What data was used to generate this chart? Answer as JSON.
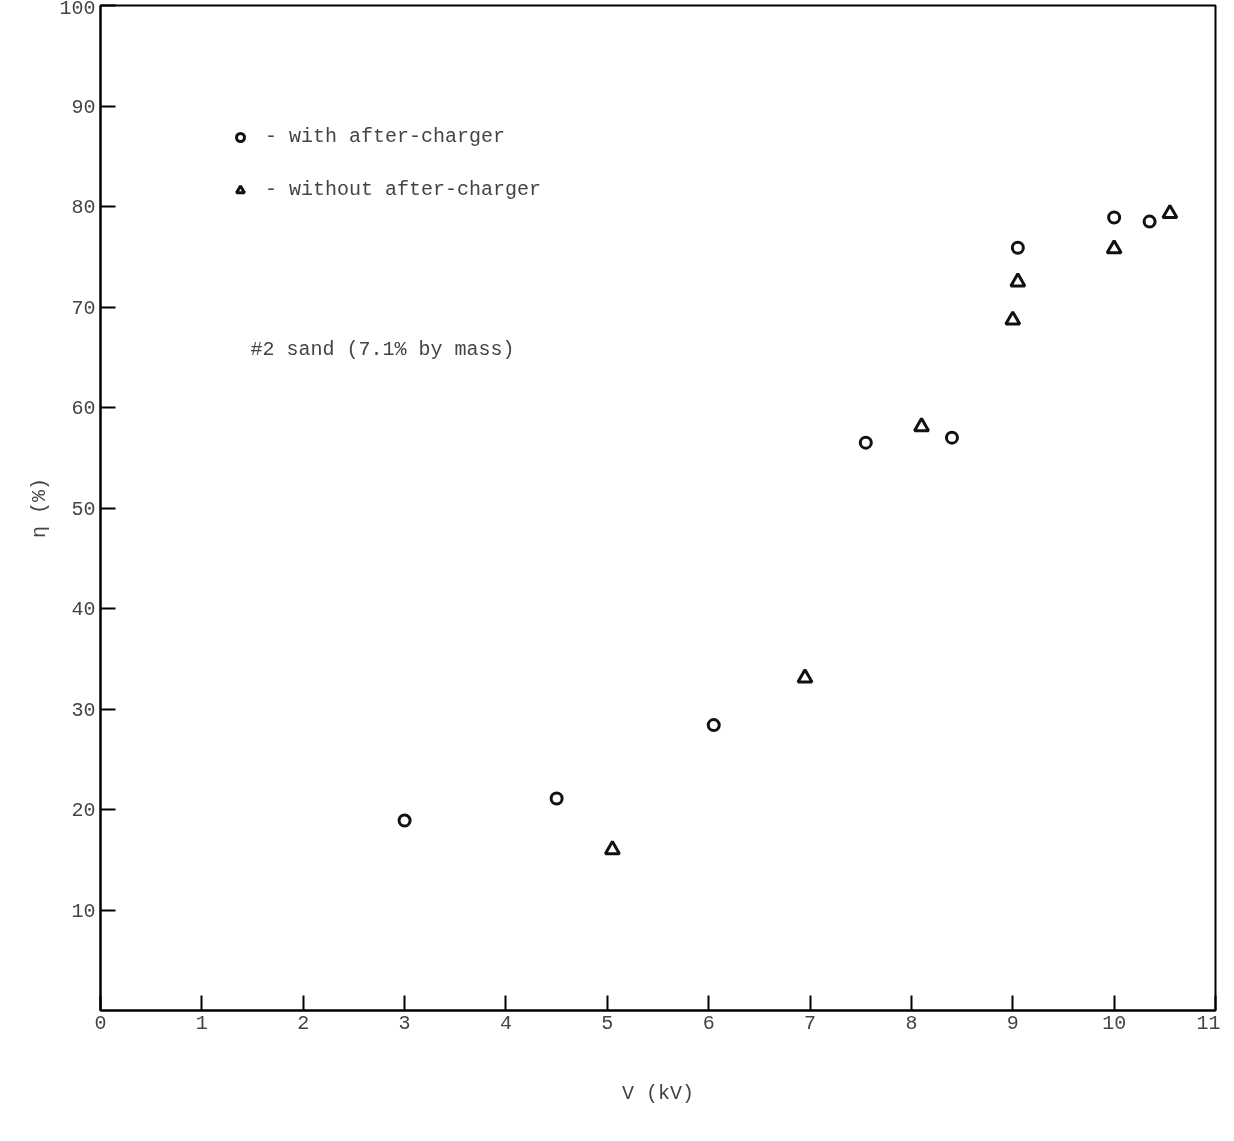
{
  "chart_data": {
    "type": "scatter",
    "xlabel": "V (kV)",
    "ylabel": "η (%)",
    "xlim": [
      0,
      11
    ],
    "ylim": [
      0,
      100
    ],
    "xticks": [
      0,
      1,
      2,
      3,
      4,
      5,
      6,
      7,
      8,
      9,
      10,
      11
    ],
    "yticks": [
      10,
      20,
      30,
      40,
      50,
      60,
      70,
      80,
      90,
      100
    ],
    "grid": false,
    "legend": "top left",
    "series": [
      {
        "name": "- with after-charger",
        "color": "#111111",
        "marker": "circle",
        "x": [
          3.0,
          4.5,
          6.05,
          7.55,
          8.4,
          9.05,
          10.0,
          10.35
        ],
        "values": [
          18.9,
          21.1,
          28.4,
          56.5,
          57.0,
          75.9,
          78.9,
          78.5
        ]
      },
      {
        "name": "- without after-charger",
        "color": "#111111",
        "marker": "triangle",
        "x": [
          5.05,
          6.95,
          8.1,
          9.05,
          9.0,
          10.0,
          10.55
        ],
        "values": [
          16.0,
          33.1,
          58.1,
          72.5,
          68.7,
          75.8,
          79.3
        ]
      }
    ],
    "annotations": [
      "#2 sand (7.1% by mass)"
    ]
  }
}
